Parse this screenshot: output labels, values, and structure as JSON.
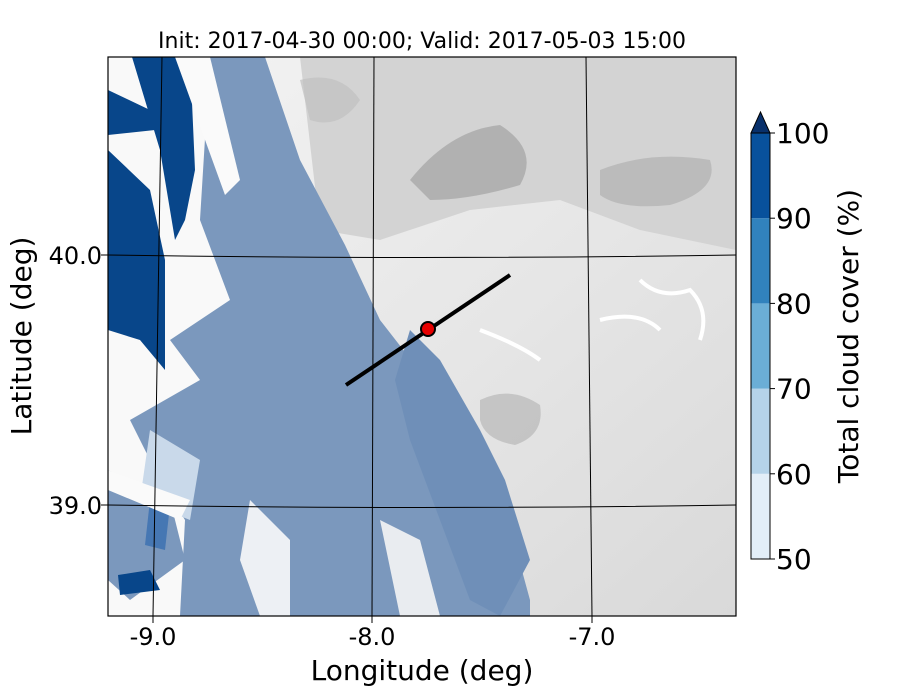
{
  "figure": {
    "title": "Init: 2017-04-30 00:00; Valid: 2017-05-03 15:00",
    "xlabel": "Longitude (deg)",
    "ylabel": "Latitude (deg)",
    "x_ticks": [
      "-9.0",
      "-8.0",
      "-7.0"
    ],
    "y_ticks": [
      "40.0",
      "39.0"
    ]
  },
  "colorbar": {
    "label": "Total cloud cover (%)",
    "ticks": [
      "50",
      "60",
      "70",
      "80",
      "90",
      "100"
    ],
    "colors": [
      "#e3eef8",
      "#b5d3e9",
      "#6baed6",
      "#3182bd",
      "#08519c",
      "#08306b"
    ],
    "extend": "max"
  },
  "chart_data": {
    "type": "heatmap",
    "title": "Init: 2017-04-30 00:00; Valid: 2017-05-03 15:00",
    "xlabel": "Longitude (deg)",
    "ylabel": "Latitude (deg)",
    "xlim": [
      -9.2,
      -6.35
    ],
    "ylim": [
      38.55,
      40.8
    ],
    "field": "Total cloud cover",
    "unit": "%",
    "levels": [
      50,
      60,
      70,
      80,
      90,
      100
    ],
    "cross_section": {
      "start": [
        -8.12,
        39.48
      ],
      "end": [
        -7.37,
        39.93
      ]
    },
    "point": {
      "lon": -7.75,
      "lat": 39.69,
      "color": "#e60000"
    },
    "terrain_colormap": "gray contours",
    "grid": true
  }
}
